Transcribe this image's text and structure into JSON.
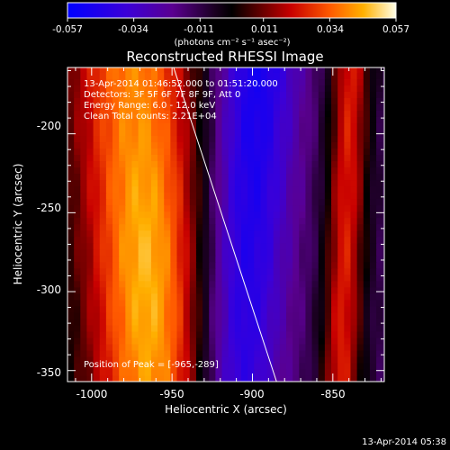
{
  "chart_data": {
    "type": "heatmap",
    "title": "Reconstructed RHESSI Image",
    "xlabel": "Heliocentric X (arcsec)",
    "ylabel": "Heliocentric Y (arcsec)",
    "xlim": [
      -1015,
      -818
    ],
    "ylim": [
      -357,
      -158
    ],
    "xticks": [
      -1000,
      -950,
      -900,
      -850
    ],
    "yticks": [
      -200,
      -250,
      -300,
      -350
    ],
    "colorbar": {
      "ticks": [
        "-0.057",
        "-0.034",
        "-0.011",
        "0.011",
        "0.034",
        "0.057"
      ],
      "range": [
        -0.057,
        0.057
      ],
      "unit": "(photons cm⁻² s⁻¹ asec⁻²)"
    },
    "annotations": [
      "13-Apr-2014 01:46:52.000 to 01:51:20.000",
      "Detectors: 3F 5F 6F 7F 8F 9F, Att 0",
      "Energy Range: 6.0 - 12.0 keV",
      "Clean     Total counts: 2.21E+04"
    ],
    "peak_label": "Position of Peak = [-965,-289]",
    "peak": {
      "x": -965,
      "y": -289
    },
    "limb_line": [
      [
        -949,
        -158
      ],
      [
        -885,
        -357
      ]
    ],
    "features": [
      {
        "label": "left bright band",
        "x_center": -968,
        "y_ref": -260,
        "width": 45,
        "tilt": -0.06,
        "amp": 1.0
      },
      {
        "label": "right bright band",
        "x_center": -842,
        "y_ref": -260,
        "width": 13,
        "tilt": 0.03,
        "amp": 0.72
      },
      {
        "label": "dark trough",
        "x_center": -905,
        "y_ref": -265,
        "width": 27,
        "tilt": 0.06,
        "amp": -0.75
      }
    ]
  },
  "footer_timestamp": "13-Apr-2014 05:38"
}
